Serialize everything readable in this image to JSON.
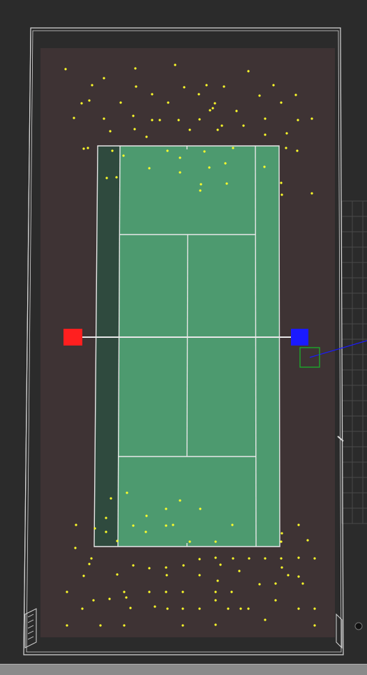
{
  "scene": {
    "view": "top-down",
    "colors": {
      "background": "#2b2b2b",
      "surround": "#3e3334",
      "court": "#4d9a6f",
      "court_dark_strip": "#2f4a3e",
      "lines": "#e8e8e8",
      "frame": "#d8d8d8",
      "ball": "#ffff2a",
      "player_red": "#ff1f1f",
      "player_blue": "#1a1aff",
      "target_box": "#19b02a",
      "aim_line": "#1a1aff"
    },
    "entities": {
      "player_left": {
        "label": "player-red",
        "shape": "square"
      },
      "player_right": {
        "label": "player-blue",
        "shape": "square"
      },
      "target": {
        "shape": "square-outline"
      }
    },
    "ball_count": 170
  }
}
